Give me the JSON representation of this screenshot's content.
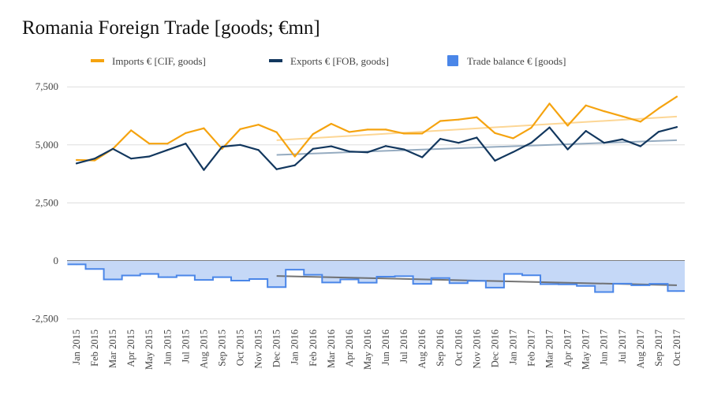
{
  "chart_data": {
    "type": "line",
    "title": "Romania Foreign Trade [goods; €mn]",
    "xlabel": "",
    "ylabel": "",
    "ylim": [
      -2500,
      7500
    ],
    "yticks": [
      7500,
      5000,
      2500,
      0,
      -2500
    ],
    "ytick_labels": [
      "7,500",
      "5,000",
      "2,500",
      "0",
      "-2,500"
    ],
    "grid": true,
    "legend_position": "top",
    "categories": [
      "Jan 2015",
      "Feb 2015",
      "Mar 2015",
      "Apr 2015",
      "May 2015",
      "Jun 2015",
      "Jul 2015",
      "Aug 2015",
      "Sep 2015",
      "Oct 2015",
      "Nov 2015",
      "Dec 2015",
      "Jan 2016",
      "Feb 2016",
      "Mar 2016",
      "Apr 2016",
      "May 2016",
      "Jun 2016",
      "Jul 2016",
      "Aug 2016",
      "Sep 2016",
      "Oct 2016",
      "Nov 2016",
      "Dec 2016",
      "Jan 2017",
      "Feb 2017",
      "Mar 2017",
      "Apr 2017",
      "May 2017",
      "Jun 2017",
      "Jul 2017",
      "Aug 2017",
      "Sep 2017",
      "Oct 2017"
    ],
    "series": [
      {
        "name": "Imports € [CIF, goods]",
        "color": "#f5a30f",
        "style": "line",
        "values": [
          4350,
          4330,
          4830,
          5625,
          5055,
          5055,
          5510,
          5715,
          4830,
          5680,
          5870,
          5545,
          4500,
          5465,
          5910,
          5555,
          5660,
          5660,
          5490,
          5490,
          6030,
          6090,
          6190,
          5510,
          5285,
          5740,
          6780,
          5830,
          6700,
          6450,
          6230,
          6000,
          6570,
          7080
        ]
      },
      {
        "name": "Exports € [FOB, goods]",
        "color": "#12375e",
        "style": "line",
        "values": [
          4200,
          4410,
          4830,
          4410,
          4500,
          4780,
          5055,
          3920,
          4920,
          5000,
          4780,
          3950,
          4120,
          4830,
          4940,
          4715,
          4680,
          4950,
          4805,
          4465,
          5260,
          5090,
          5315,
          4320,
          4690,
          5090,
          5750,
          4805,
          5600,
          5090,
          5240,
          4940,
          5565,
          5770
        ]
      },
      {
        "name": "Trade balance € [goods]",
        "color": "#4a86e8",
        "style": "stepped-area",
        "values": [
          -150,
          -350,
          -800,
          -630,
          -560,
          -700,
          -630,
          -820,
          -700,
          -850,
          -780,
          -1130,
          -380,
          -600,
          -930,
          -800,
          -940,
          -680,
          -660,
          -990,
          -740,
          -960,
          -860,
          -1150,
          -560,
          -620,
          -1000,
          -1010,
          -1080,
          -1340,
          -980,
          -1050,
          -990,
          -1300
        ]
      }
    ],
    "trendlines": [
      {
        "series": "Imports € [CIF, goods]",
        "color": "#fcd28a",
        "from": "Dec 2015",
        "to": "Oct 2017",
        "start": 5200,
        "end": 6220
      },
      {
        "series": "Exports € [FOB, goods]",
        "color": "#8aa3ba",
        "from": "Dec 2015",
        "to": "Oct 2017",
        "start": 4570,
        "end": 5200
      },
      {
        "series": "Trade balance € [goods]",
        "color": "#666666",
        "from": "Dec 2015",
        "to": "Oct 2017",
        "start": -650,
        "end": -1050
      }
    ]
  }
}
